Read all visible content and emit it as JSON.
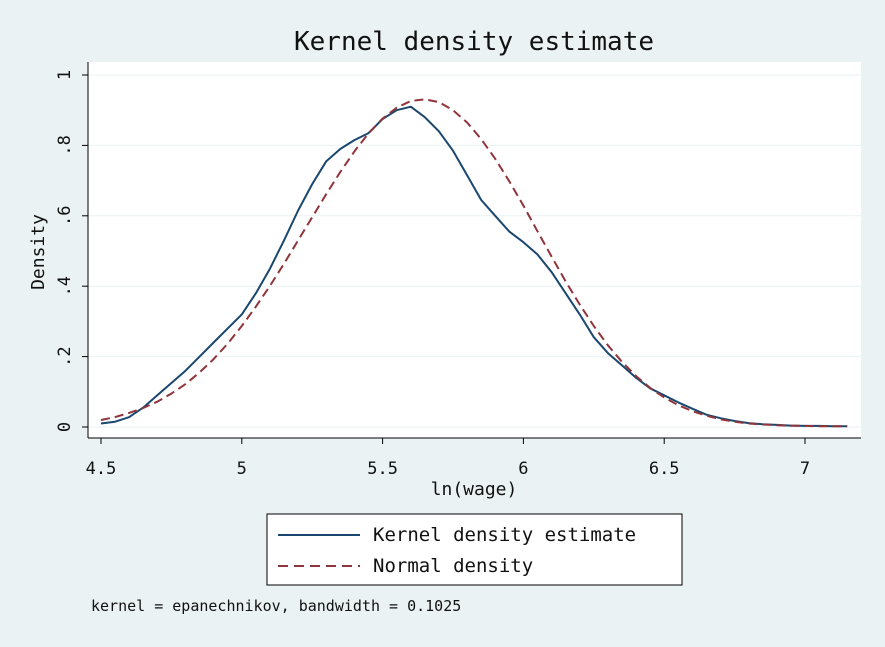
{
  "chart_data": {
    "type": "line",
    "title": "Kernel density estimate",
    "xlabel": "ln(wage)",
    "ylabel": "Density",
    "xlim": [
      4.5,
      7.15
    ],
    "ylim": [
      0,
      1
    ],
    "x_ticks": [
      4.5,
      5,
      5.5,
      6,
      6.5,
      7
    ],
    "x_tick_labels": [
      "4.5",
      "5",
      "5.5",
      "6",
      "6.5",
      "7"
    ],
    "y_ticks": [
      0,
      0.2,
      0.4,
      0.6,
      0.8,
      1
    ],
    "y_tick_labels": [
      "0",
      ".2",
      ".4",
      ".6",
      ".8",
      "1"
    ],
    "grid": true,
    "legend_position": "bottom",
    "series": [
      {
        "name": "Kernel density estimate",
        "color": "#1a476f",
        "style": "solid",
        "x": [
          4.5,
          4.55,
          4.6,
          4.65,
          4.7,
          4.75,
          4.8,
          4.85,
          4.9,
          4.95,
          5.0,
          5.05,
          5.1,
          5.15,
          5.2,
          5.25,
          5.3,
          5.35,
          5.4,
          5.45,
          5.5,
          5.55,
          5.6,
          5.65,
          5.7,
          5.75,
          5.8,
          5.85,
          5.9,
          5.95,
          6.0,
          6.05,
          6.1,
          6.15,
          6.2,
          6.25,
          6.3,
          6.35,
          6.4,
          6.45,
          6.5,
          6.55,
          6.6,
          6.65,
          6.7,
          6.75,
          6.8,
          6.85,
          6.9,
          6.95,
          7.0,
          7.05,
          7.1,
          7.15
        ],
        "y": [
          0.01,
          0.015,
          0.028,
          0.055,
          0.09,
          0.125,
          0.16,
          0.2,
          0.24,
          0.28,
          0.32,
          0.38,
          0.45,
          0.53,
          0.615,
          0.69,
          0.755,
          0.79,
          0.815,
          0.835,
          0.875,
          0.9,
          0.91,
          0.88,
          0.84,
          0.785,
          0.715,
          0.645,
          0.6,
          0.555,
          0.525,
          0.49,
          0.44,
          0.38,
          0.32,
          0.255,
          0.21,
          0.175,
          0.14,
          0.11,
          0.09,
          0.07,
          0.052,
          0.035,
          0.025,
          0.017,
          0.011,
          0.008,
          0.006,
          0.004,
          0.003,
          0.003,
          0.002,
          0.002
        ]
      },
      {
        "name": "Normal density",
        "color": "#90353b",
        "style": "dashed",
        "x": [
          4.5,
          4.55,
          4.6,
          4.65,
          4.7,
          4.75,
          4.8,
          4.85,
          4.9,
          4.95,
          5.0,
          5.05,
          5.1,
          5.15,
          5.2,
          5.25,
          5.3,
          5.35,
          5.4,
          5.45,
          5.5,
          5.55,
          5.6,
          5.65,
          5.7,
          5.75,
          5.8,
          5.85,
          5.9,
          5.95,
          6.0,
          6.05,
          6.1,
          6.15,
          6.2,
          6.25,
          6.3,
          6.35,
          6.4,
          6.45,
          6.5,
          6.55,
          6.6,
          6.65,
          6.7,
          6.75,
          6.8,
          6.85,
          6.9,
          6.95,
          7.0,
          7.05,
          7.1,
          7.15
        ],
        "y": [
          0.02,
          0.028,
          0.04,
          0.054,
          0.072,
          0.095,
          0.122,
          0.155,
          0.193,
          0.237,
          0.287,
          0.342,
          0.401,
          0.464,
          0.53,
          0.596,
          0.662,
          0.725,
          0.783,
          0.834,
          0.876,
          0.907,
          0.926,
          0.931,
          0.923,
          0.9,
          0.865,
          0.818,
          0.762,
          0.698,
          0.629,
          0.556,
          0.484,
          0.414,
          0.348,
          0.287,
          0.232,
          0.185,
          0.145,
          0.111,
          0.084,
          0.062,
          0.045,
          0.032,
          0.022,
          0.015,
          0.01,
          0.007,
          0.005,
          0.004,
          0.003,
          0.002,
          0.002,
          0.002
        ]
      }
    ],
    "note": "kernel = epanechnikov, bandwidth = 0.1025"
  }
}
